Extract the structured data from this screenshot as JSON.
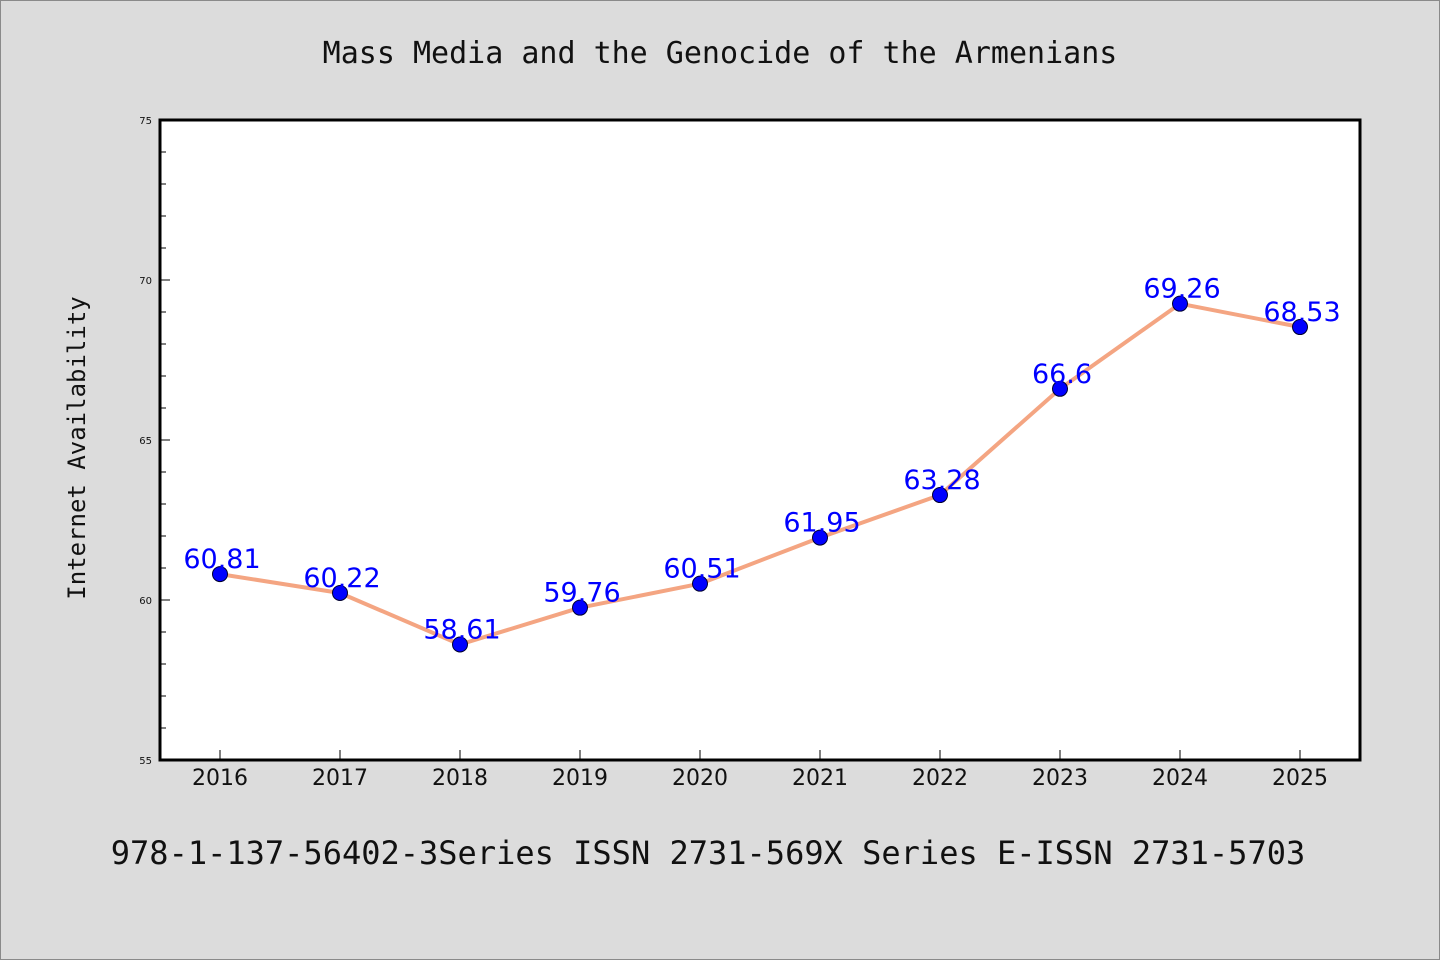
{
  "chart_data": {
    "type": "line",
    "title": "Mass Media and the Genocide of the Armenians",
    "xlabel": "",
    "ylabel": "Internet Availability",
    "categories": [
      "2016",
      "2017",
      "2018",
      "2019",
      "2020",
      "2021",
      "2022",
      "2023",
      "2024",
      "2025"
    ],
    "series": [
      {
        "values": [
          60.81,
          60.22,
          58.61,
          59.76,
          60.51,
          61.95,
          63.28,
          66.6,
          69.26,
          68.53
        ],
        "data_labels": [
          "60.81",
          "60.22",
          "58.61",
          "59.76",
          "60.51",
          "61.95",
          "63.28",
          "66.6",
          "69.26",
          "68.53"
        ]
      }
    ],
    "ylim": [
      55,
      75
    ],
    "yticks": [
      "55",
      "60",
      "65",
      "70",
      "75"
    ],
    "grid": false,
    "legend": "none",
    "colors": {
      "line": "#f4a582",
      "marker": "#0000ff",
      "data_label": "#0000ff",
      "background": "#dcdcdc",
      "plot_area": "#ffffff"
    },
    "footer": "978-1-137-56402-3Series ISSN 2731-569X Series E-ISSN 2731-5703"
  }
}
